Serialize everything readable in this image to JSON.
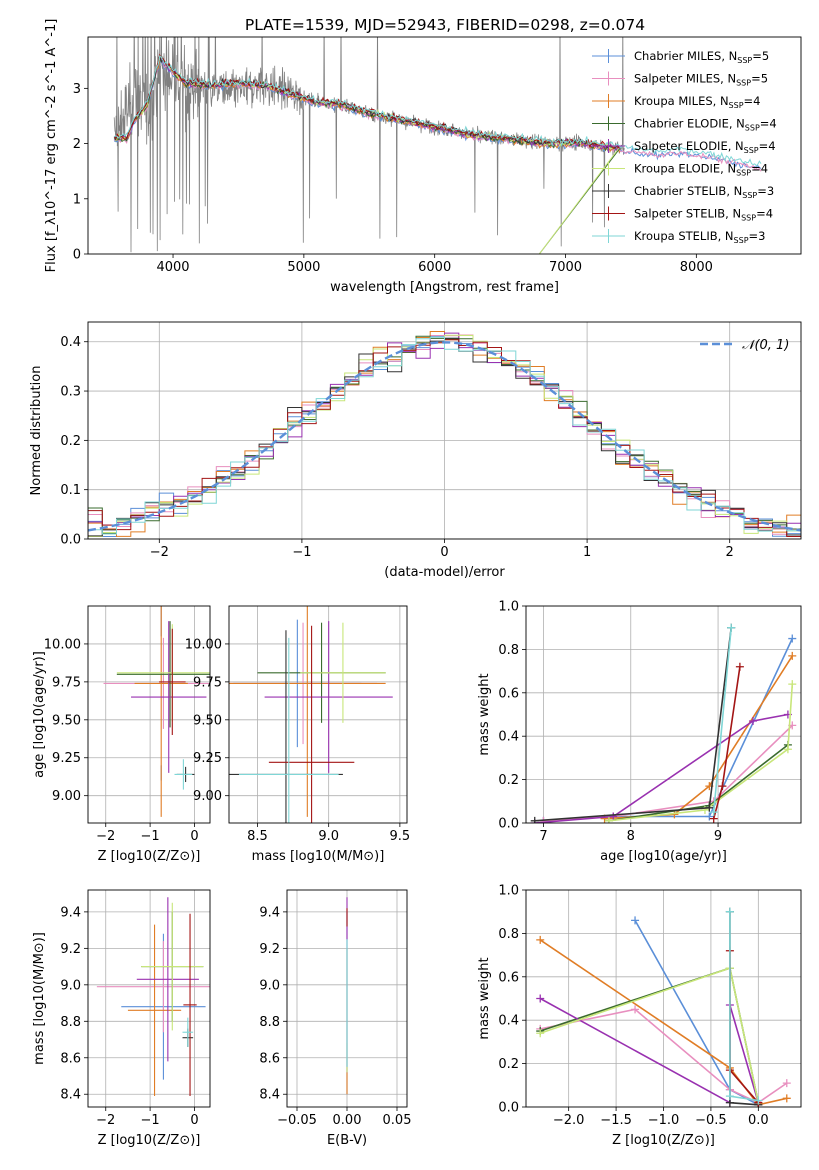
{
  "figure": {
    "title": "PLATE=1539, MJD=52943, FIBERID=0298, z=0.074"
  },
  "models": [
    {
      "name": "Chabrier MILES",
      "nssp": "5",
      "color": "#5b8fd8"
    },
    {
      "name": "Salpeter MILES",
      "nssp": "5",
      "color": "#e88fbf"
    },
    {
      "name": "Kroupa MILES",
      "nssp": "4",
      "color": "#e07d26"
    },
    {
      "name": "Chabrier ELODIE",
      "nssp": "4",
      "color": "#3a6b2e"
    },
    {
      "name": "Salpeter ELODIE",
      "nssp": "4",
      "color": "#9931b0"
    },
    {
      "name": "Kroupa ELODIE",
      "nssp": "4",
      "color": "#c8e67a"
    },
    {
      "name": "Chabrier STELIB",
      "nssp": "3",
      "color": "#333333"
    },
    {
      "name": "Salpeter STELIB",
      "nssp": "4",
      "color": "#a31515"
    },
    {
      "name": "Kroupa STELIB",
      "nssp": "3",
      "color": "#7fd6d6"
    }
  ],
  "chart_data": [
    {
      "id": "spectrum",
      "type": "line",
      "xlabel": "wavelength [Angstrom, rest frame]",
      "ylabel": "Flux [f_λ10^-17 erg cm^-2 s^-1 A^-1]",
      "xlim": [
        3350,
        8800
      ],
      "ylim": [
        0,
        3.93
      ],
      "xticks": [
        4000,
        5000,
        6000,
        7000,
        8000
      ],
      "yticks": [
        0,
        1,
        2,
        3
      ],
      "data_color": "#808080",
      "data_continuum": [
        [
          3550,
          2.05
        ],
        [
          3700,
          2.9
        ],
        [
          3800,
          2.6
        ],
        [
          3900,
          3.35
        ],
        [
          4000,
          3.2
        ],
        [
          4100,
          3.05
        ],
        [
          4300,
          3.0
        ],
        [
          4500,
          2.95
        ],
        [
          4700,
          3.1
        ],
        [
          4900,
          2.9
        ],
        [
          5100,
          2.75
        ],
        [
          5300,
          2.7
        ],
        [
          5500,
          2.55
        ],
        [
          5700,
          2.45
        ],
        [
          5900,
          2.35
        ],
        [
          6100,
          2.25
        ],
        [
          6300,
          2.15
        ],
        [
          6500,
          2.1
        ],
        [
          6700,
          2.05
        ],
        [
          6900,
          2.0
        ],
        [
          7100,
          2.02
        ],
        [
          7300,
          1.95
        ],
        [
          7500,
          1.85
        ],
        [
          7700,
          1.8
        ],
        [
          7900,
          1.85
        ],
        [
          8100,
          1.75
        ],
        [
          8300,
          1.65
        ],
        [
          8500,
          1.55
        ]
      ],
      "model_continuum": [
        [
          3550,
          2.1
        ],
        [
          3650,
          2.1
        ],
        [
          3700,
          2.4
        ],
        [
          3800,
          2.7
        ],
        [
          3900,
          3.55
        ],
        [
          4000,
          3.3
        ],
        [
          4100,
          3.1
        ],
        [
          4300,
          3.05
        ],
        [
          4500,
          3.1
        ],
        [
          4700,
          3.05
        ],
        [
          4900,
          2.9
        ],
        [
          5100,
          2.75
        ],
        [
          5300,
          2.7
        ],
        [
          5500,
          2.55
        ],
        [
          5700,
          2.45
        ],
        [
          5900,
          2.35
        ],
        [
          6100,
          2.25
        ],
        [
          6300,
          2.15
        ],
        [
          6500,
          2.1
        ],
        [
          6700,
          2.05
        ],
        [
          6900,
          2.0
        ],
        [
          7100,
          2.02
        ],
        [
          7300,
          1.95
        ],
        [
          7500,
          1.88
        ],
        [
          7700,
          1.82
        ],
        [
          7900,
          1.86
        ],
        [
          8100,
          1.78
        ],
        [
          8300,
          1.68
        ],
        [
          8500,
          1.58
        ]
      ],
      "short_models_end": 7420
    },
    {
      "id": "residuals",
      "type": "bar",
      "xlabel": "(data-model)/error",
      "ylabel": "Normed distribution",
      "xlim": [
        -2.5,
        2.5
      ],
      "ylim": [
        0,
        0.44
      ],
      "xticks": [
        -2,
        -1,
        0,
        1,
        2
      ],
      "yticks": [
        0.0,
        0.1,
        0.2,
        0.3,
        0.4
      ],
      "reference_label": "𝒩(0, 1)",
      "reference_color": "#5b8fd8",
      "bin_width": 0.1
    },
    {
      "id": "age-vs-Z",
      "type": "scatter",
      "xlabel": "Z [log10(Z/Z⊙)]",
      "ylabel": "age  [log10(age/yr)]",
      "xlim": [
        -2.4,
        0.35
      ],
      "ylim": [
        8.82,
        10.25
      ],
      "xticks": [
        -2,
        -1,
        0
      ],
      "yticks": [
        9.0,
        9.25,
        9.5,
        9.75,
        10.0
      ],
      "errorbars": [
        {
          "m": 0,
          "x": -0.75,
          "y": 10.15,
          "xe": 0,
          "ye": 0.1
        },
        {
          "m": 0,
          "x": -0.75,
          "y": 9.15,
          "xe": 0,
          "ye": 0.05
        },
        {
          "m": 1,
          "x": -0.7,
          "y": 9.74,
          "xe": 1.35,
          "ye": 0.3
        },
        {
          "m": 2,
          "x": -0.75,
          "y": 9.74,
          "xe": 0.6,
          "ye": 0.88
        },
        {
          "m": 3,
          "x": -0.55,
          "y": 9.8,
          "xe": 1.2,
          "ye": 0.35
        },
        {
          "m": 4,
          "x": -0.58,
          "y": 9.65,
          "xe": 0.85,
          "ye": 0.5
        },
        {
          "m": 5,
          "x": -0.5,
          "y": 9.81,
          "xe": 1.25,
          "ye": 0.32
        },
        {
          "m": 6,
          "x": -0.2,
          "y": 9.14,
          "xe": 0.2,
          "ye": 0.05
        },
        {
          "m": 7,
          "x": -0.5,
          "y": 9.75,
          "xe": 0.3,
          "ye": 0.35
        },
        {
          "m": 8,
          "x": -0.25,
          "y": 9.14,
          "xe": 0.2,
          "ye": 0.1
        }
      ]
    },
    {
      "id": "age-vs-mass",
      "type": "scatter",
      "xlabel": "mass [log10(M/M⊙)]",
      "ylabel": "",
      "xlim": [
        8.3,
        9.55
      ],
      "ylim": [
        8.82,
        10.25
      ],
      "xticks": [
        8.5,
        9.0,
        9.5
      ],
      "yticks": [
        9.0,
        9.25,
        9.5,
        9.75,
        10.0
      ],
      "errorbars": [
        {
          "m": 0,
          "x": 8.78,
          "y": 9.74,
          "xe": 0.45,
          "ye": 0.42
        },
        {
          "m": 1,
          "x": 8.82,
          "y": 9.74,
          "xe": 0.52,
          "ye": 0.4
        },
        {
          "m": 2,
          "x": 8.85,
          "y": 9.74,
          "xe": 0.55,
          "ye": 0.88
        },
        {
          "m": 3,
          "x": 8.95,
          "y": 9.81,
          "xe": 0.45,
          "ye": 0.33
        },
        {
          "m": 4,
          "x": 9.0,
          "y": 9.65,
          "xe": 0.45,
          "ye": 0.5
        },
        {
          "m": 5,
          "x": 9.1,
          "y": 9.81,
          "xe": 0.3,
          "ye": 0.33
        },
        {
          "m": 6,
          "x": 8.7,
          "y": 9.14,
          "xe": 0.4,
          "ye": 0.95
        },
        {
          "m": 7,
          "x": 8.88,
          "y": 9.22,
          "xe": 0.3,
          "ye": 0.9
        },
        {
          "m": 8,
          "x": 8.72,
          "y": 9.14,
          "xe": 0.35,
          "ye": 0.9
        }
      ]
    },
    {
      "id": "weight-vs-age",
      "type": "line",
      "xlabel": "age  [log10(age/yr)]",
      "ylabel": "mass weight",
      "xlim": [
        6.8,
        9.95
      ],
      "ylim": [
        0,
        1.0
      ],
      "xticks": [
        7,
        8,
        9
      ],
      "yticks": [
        0.0,
        0.2,
        0.4,
        0.6,
        0.8,
        1.0
      ],
      "series": [
        {
          "m": 0,
          "points": [
            [
              7.0,
              0.01
            ],
            [
              7.8,
              0.03
            ],
            [
              8.9,
              0.03
            ],
            [
              9.85,
              0.85
            ]
          ]
        },
        {
          "m": 1,
          "points": [
            [
              7.0,
              0.01
            ],
            [
              7.8,
              0.03
            ],
            [
              8.95,
              0.1
            ],
            [
              9.85,
              0.45
            ]
          ]
        },
        {
          "m": 2,
          "points": [
            [
              7.7,
              0.02
            ],
            [
              8.5,
              0.04
            ],
            [
              8.9,
              0.17
            ],
            [
              9.85,
              0.77
            ]
          ]
        },
        {
          "m": 3,
          "points": [
            [
              7.75,
              0.01
            ],
            [
              8.9,
              0.08
            ],
            [
              9.8,
              0.36
            ]
          ]
        },
        {
          "m": 4,
          "points": [
            [
              6.9,
              0.0
            ],
            [
              7.8,
              0.03
            ],
            [
              9.4,
              0.47
            ],
            [
              9.8,
              0.5
            ]
          ]
        },
        {
          "m": 5,
          "points": [
            [
              7.75,
              0.01
            ],
            [
              8.85,
              0.06
            ],
            [
              9.8,
              0.34
            ],
            [
              9.85,
              0.64
            ]
          ]
        },
        {
          "m": 6,
          "points": [
            [
              6.9,
              0.01
            ],
            [
              8.9,
              0.07
            ],
            [
              9.15,
              0.9
            ]
          ]
        },
        {
          "m": 7,
          "points": [
            [
              8.95,
              0.02
            ],
            [
              9.05,
              0.17
            ],
            [
              9.25,
              0.72
            ]
          ]
        },
        {
          "m": 8,
          "points": [
            [
              8.95,
              0.05
            ],
            [
              9.15,
              0.9
            ]
          ]
        }
      ]
    },
    {
      "id": "mass-vs-Z",
      "type": "scatter",
      "xlabel": "Z [log10(Z/Z⊙)]",
      "ylabel": "mass [log10(M/M⊙)]",
      "xlim": [
        -2.4,
        0.35
      ],
      "ylim": [
        8.33,
        9.52
      ],
      "xticks": [
        -2,
        -1,
        0
      ],
      "yticks": [
        8.4,
        8.6,
        8.8,
        9.0,
        9.2,
        9.4
      ],
      "errorbars": [
        {
          "m": 0,
          "x": -0.7,
          "y": 8.88,
          "xe": 0.95,
          "ye": 0.4
        },
        {
          "m": 1,
          "x": -0.7,
          "y": 8.99,
          "xe": 1.5,
          "ye": 0.25
        },
        {
          "m": 2,
          "x": -0.9,
          "y": 8.86,
          "xe": 0.6,
          "ye": 0.47
        },
        {
          "m": 3,
          "x": -0.5,
          "y": 9.1,
          "xe": 0.7,
          "ye": 0.3
        },
        {
          "m": 4,
          "x": -0.6,
          "y": 9.03,
          "xe": 0.7,
          "ye": 0.45
        },
        {
          "m": 5,
          "x": -0.5,
          "y": 9.1,
          "xe": 0.7,
          "ye": 0.35
        },
        {
          "m": 6,
          "x": -0.15,
          "y": 8.71,
          "xe": 0.12,
          "ye": 0.05
        },
        {
          "m": 7,
          "x": -0.1,
          "y": 8.89,
          "xe": 0.15,
          "ye": 0.5
        },
        {
          "m": 8,
          "x": -0.15,
          "y": 8.74,
          "xe": 0.12,
          "ye": 0.08
        }
      ]
    },
    {
      "id": "mass-vs-EBV",
      "type": "scatter",
      "xlabel": "E(B-V)",
      "ylabel": "",
      "xlim": [
        -0.06,
        0.06
      ],
      "ylim": [
        8.33,
        9.52
      ],
      "xticks": [
        -0.05,
        0.0,
        0.05
      ],
      "xticklabels": [
        "−0.05",
        "0.00",
        "0.05"
      ],
      "yticks": [
        8.4,
        8.6,
        8.8,
        9.0,
        9.2,
        9.4
      ],
      "errorbars": [
        {
          "m": 0,
          "x": 0,
          "y": 8.9,
          "xe": 0,
          "ye": 0.5
        },
        {
          "m": 2,
          "x": 0,
          "y": 8.8,
          "xe": 0,
          "ye": 0.4
        },
        {
          "m": 4,
          "x": 0,
          "y": 9.0,
          "xe": 0,
          "ye": 0.48
        },
        {
          "m": 7,
          "x": 0,
          "y": 9.37,
          "xe": 0,
          "ye": 0.05
        },
        {
          "m": 5,
          "x": 0,
          "y": 8.6,
          "xe": 0,
          "ye": 0.08
        },
        {
          "m": 8,
          "x": 0,
          "y": 8.9,
          "xe": 0,
          "ye": 0.35
        }
      ]
    },
    {
      "id": "weight-vs-Z",
      "type": "line",
      "xlabel": "Z [log10(Z/Z⊙)]",
      "ylabel": "mass weight",
      "xlim": [
        -2.45,
        0.45
      ],
      "ylim": [
        0,
        1.0
      ],
      "xticks": [
        -2.0,
        -1.5,
        -1.0,
        -0.5,
        0.0
      ],
      "xticklabels": [
        "−2.0",
        "−1.5",
        "−1.0",
        "−0.5",
        "0.0"
      ],
      "yticks": [
        0.0,
        0.2,
        0.4,
        0.6,
        0.8,
        1.0
      ],
      "series": [
        {
          "m": 0,
          "points": [
            [
              -1.3,
              0.86
            ],
            [
              -0.3,
              0.08
            ],
            [
              0.0,
              0.01
            ]
          ]
        },
        {
          "m": 1,
          "points": [
            [
              -2.3,
              0.36
            ],
            [
              -1.3,
              0.45
            ],
            [
              -0.3,
              0.08
            ],
            [
              0.0,
              0.02
            ],
            [
              0.3,
              0.11
            ]
          ]
        },
        {
          "m": 2,
          "points": [
            [
              -2.3,
              0.77
            ],
            [
              -0.3,
              0.18
            ],
            [
              0.0,
              0.01
            ],
            [
              0.3,
              0.04
            ]
          ]
        },
        {
          "m": 3,
          "points": [
            [
              -2.3,
              0.35
            ],
            [
              -0.3,
              0.64
            ],
            [
              0.0,
              0.02
            ]
          ]
        },
        {
          "m": 4,
          "points": [
            [
              -2.3,
              0.5
            ],
            [
              -0.3,
              0.02
            ],
            [
              -0.3,
              0.47
            ],
            [
              0.0,
              0.02
            ]
          ]
        },
        {
          "m": 5,
          "points": [
            [
              -2.3,
              0.34
            ],
            [
              -0.3,
              0.64
            ],
            [
              0.0,
              0.02
            ]
          ]
        },
        {
          "m": 6,
          "points": [
            [
              -0.3,
              0.9
            ],
            [
              -0.3,
              0.02
            ],
            [
              0.0,
              0.01
            ]
          ]
        },
        {
          "m": 7,
          "points": [
            [
              -0.3,
              0.72
            ],
            [
              -0.3,
              0.17
            ],
            [
              0.0,
              0.02
            ]
          ]
        },
        {
          "m": 8,
          "points": [
            [
              -0.3,
              0.9
            ],
            [
              -0.3,
              0.05
            ],
            [
              0.0,
              0.03
            ]
          ]
        }
      ]
    }
  ]
}
